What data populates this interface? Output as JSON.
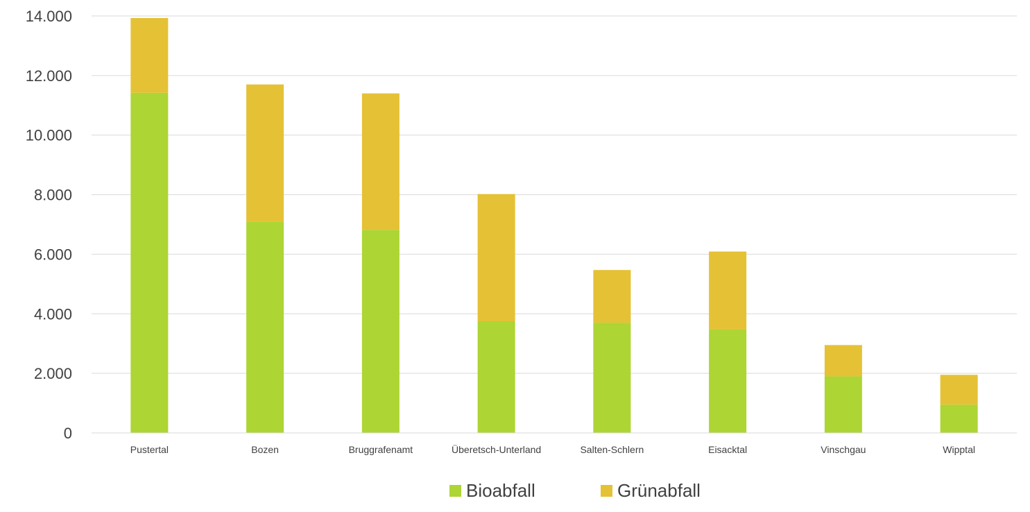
{
  "chart_data": {
    "type": "bar",
    "stacked": true,
    "categories": [
      "Pustertal",
      "Bozen",
      "Bruggrafenamt",
      "Überetsch-Unterland",
      "Salten-Schlern",
      "Eisacktal",
      "Vinschgau",
      "Wipptal"
    ],
    "series": [
      {
        "name": "Bioabfall",
        "color": "#add534",
        "values": [
          11420,
          7100,
          6820,
          3750,
          3700,
          3480,
          1900,
          950
        ]
      },
      {
        "name": "Grünabfall",
        "color": "#e5c135",
        "values": [
          2510,
          4600,
          4580,
          4270,
          1770,
          2610,
          1050,
          1000
        ]
      }
    ],
    "ylim": [
      0,
      14000
    ],
    "yticks": [
      0,
      2000,
      4000,
      6000,
      8000,
      10000,
      12000,
      14000
    ],
    "ytick_labels": [
      "0",
      "2.000",
      "4.000",
      "6.000",
      "8.000",
      "10.000",
      "12.000",
      "14.000"
    ],
    "title": "",
    "xlabel": "",
    "ylabel": "",
    "grid": true,
    "legend_position": "bottom"
  }
}
